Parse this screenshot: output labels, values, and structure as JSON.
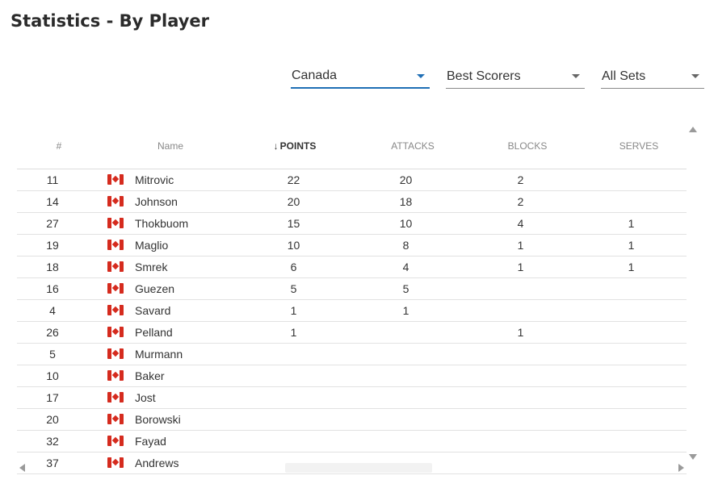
{
  "page_title": "Statistics - By Player",
  "filters": {
    "country": "Canada",
    "metric": "Best Scorers",
    "sets": "All Sets"
  },
  "table": {
    "columns": {
      "number": "#",
      "name": "Name",
      "points_arrow": "↓",
      "points": "POINTS",
      "attacks": "ATTACKS",
      "blocks": "BLOCKS",
      "serves": "SERVES"
    },
    "rows": [
      {
        "number": "11",
        "name": "Mitrovic",
        "points": "22",
        "attacks": "20",
        "blocks": "2",
        "serves": ""
      },
      {
        "number": "14",
        "name": "Johnson",
        "points": "20",
        "attacks": "18",
        "blocks": "2",
        "serves": ""
      },
      {
        "number": "27",
        "name": "Thokbuom",
        "points": "15",
        "attacks": "10",
        "blocks": "4",
        "serves": "1"
      },
      {
        "number": "19",
        "name": "Maglio",
        "points": "10",
        "attacks": "8",
        "blocks": "1",
        "serves": "1"
      },
      {
        "number": "18",
        "name": "Smrek",
        "points": "6",
        "attacks": "4",
        "blocks": "1",
        "serves": "1"
      },
      {
        "number": "16",
        "name": "Guezen",
        "points": "5",
        "attacks": "5",
        "blocks": "",
        "serves": ""
      },
      {
        "number": "4",
        "name": "Savard",
        "points": "1",
        "attacks": "1",
        "blocks": "",
        "serves": ""
      },
      {
        "number": "26",
        "name": "Pelland",
        "points": "1",
        "attacks": "",
        "blocks": "1",
        "serves": ""
      },
      {
        "number": "5",
        "name": "Murmann",
        "points": "",
        "attacks": "",
        "blocks": "",
        "serves": ""
      },
      {
        "number": "10",
        "name": "Baker",
        "points": "",
        "attacks": "",
        "blocks": "",
        "serves": ""
      },
      {
        "number": "17",
        "name": "Jost",
        "points": "",
        "attacks": "",
        "blocks": "",
        "serves": ""
      },
      {
        "number": "20",
        "name": "Borowski",
        "points": "",
        "attacks": "",
        "blocks": "",
        "serves": ""
      },
      {
        "number": "32",
        "name": "Fayad",
        "points": "",
        "attacks": "",
        "blocks": "",
        "serves": ""
      },
      {
        "number": "37",
        "name": "Andrews",
        "points": "",
        "attacks": "",
        "blocks": "",
        "serves": ""
      }
    ]
  },
  "icons": {
    "flag": "canada-flag-icon",
    "dropdown": "caret-down-icon",
    "sort": "arrow-down-icon"
  },
  "colors": {
    "accent": "#1f6fb5",
    "flag_red": "#d52b1e"
  }
}
